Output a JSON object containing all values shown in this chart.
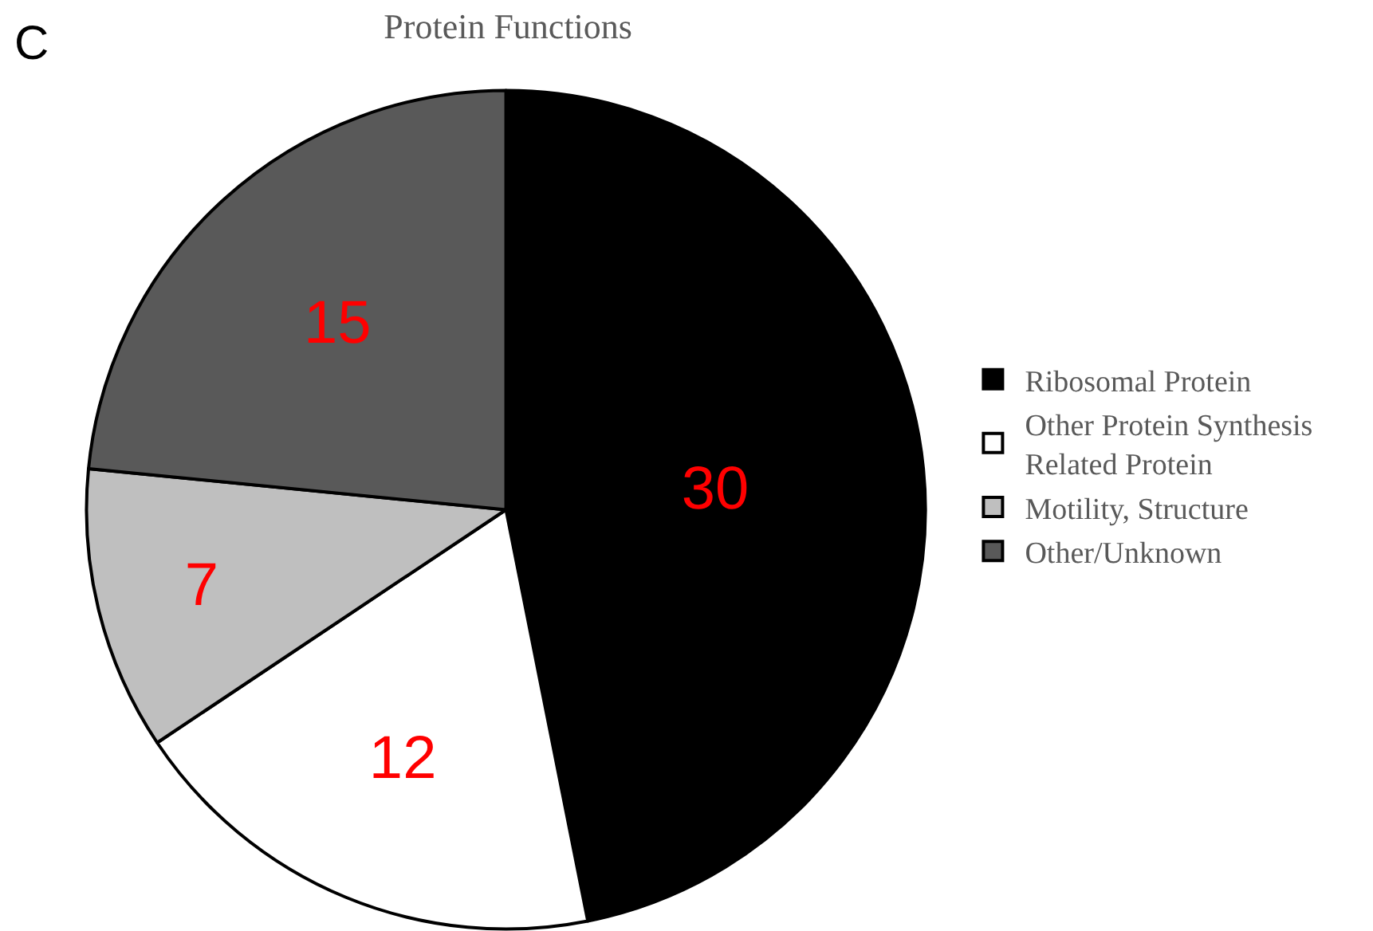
{
  "chart_data": {
    "type": "pie",
    "title": "Protein Functions",
    "categories": [
      "Ribosomal Protein",
      "Other Protein Synthesis Related Protein",
      "Motility, Structure",
      "Other/Unknown"
    ],
    "values": [
      30,
      12,
      7,
      15
    ],
    "colors": [
      "#000000",
      "#ffffff",
      "#bfbfbf",
      "#595959"
    ],
    "data_labels": true,
    "legend": "right",
    "annotations": [
      "C"
    ]
  }
}
